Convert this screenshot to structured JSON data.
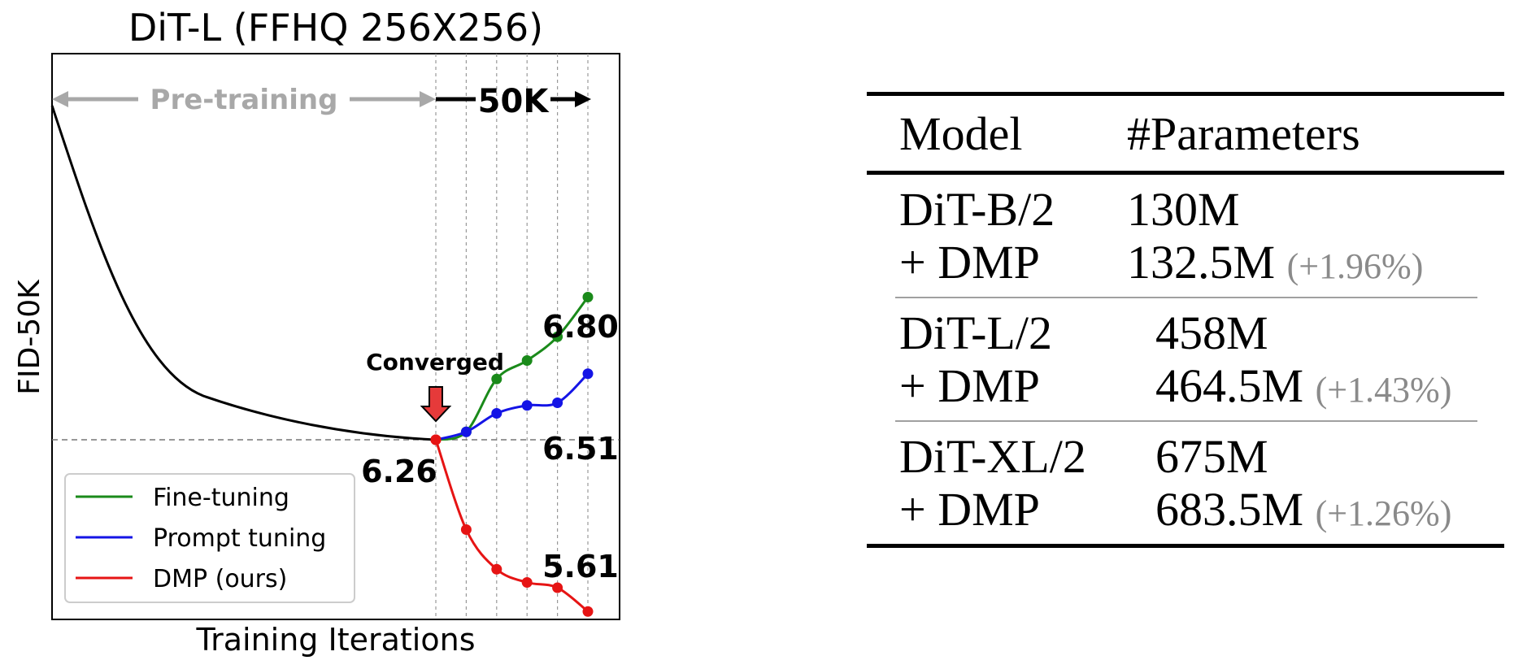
{
  "chart_data": {
    "type": "line",
    "title": "DiT-L (FFHQ 256X256)",
    "xlabel": "Training Iterations",
    "ylabel": "FID-50K",
    "grid": "vertical dashed lines at fine-tuning checkpoints",
    "legend_position": "bottom-left",
    "annotations": {
      "pretraining": "Pre-training",
      "finetune_span": "50K",
      "converged": "Converged",
      "converged_value": "6.26",
      "finetune_end": "6.80",
      "prompt_end": "6.51",
      "dmp_end": "5.61"
    },
    "series": [
      {
        "name": "Fine-tuning",
        "color": "#1a8a1a",
        "x": [
          0,
          10,
          20,
          30,
          40,
          50
        ],
        "y": [
          6.26,
          6.29,
          6.49,
          6.56,
          6.65,
          6.8
        ]
      },
      {
        "name": "Prompt tuning",
        "color": "#1414e6",
        "x": [
          0,
          10,
          20,
          30,
          40,
          50
        ],
        "y": [
          6.26,
          6.29,
          6.36,
          6.39,
          6.4,
          6.51
        ]
      },
      {
        "name": "DMP (ours)",
        "color": "#e61414",
        "x": [
          0,
          10,
          20,
          30,
          40,
          50
        ],
        "y": [
          6.26,
          5.92,
          5.77,
          5.72,
          5.7,
          5.61
        ]
      }
    ]
  },
  "table": {
    "headers": [
      "Model",
      "#Parameters"
    ],
    "groups": [
      {
        "rows": [
          {
            "model": "DiT-B/2",
            "params": "130M",
            "delta": ""
          },
          {
            "model": "+ DMP",
            "params": "132.5M",
            "delta": "(+1.96%)"
          }
        ]
      },
      {
        "rows": [
          {
            "model": "DiT-L/2",
            "params": "458M",
            "delta": ""
          },
          {
            "model": "+ DMP",
            "params": "464.5M",
            "delta": "(+1.43%)"
          }
        ]
      },
      {
        "rows": [
          {
            "model": "DiT-XL/2",
            "params": "675M",
            "delta": ""
          },
          {
            "model": "+ DMP",
            "params": "683.5M",
            "delta": "(+1.26%)"
          }
        ]
      }
    ]
  }
}
